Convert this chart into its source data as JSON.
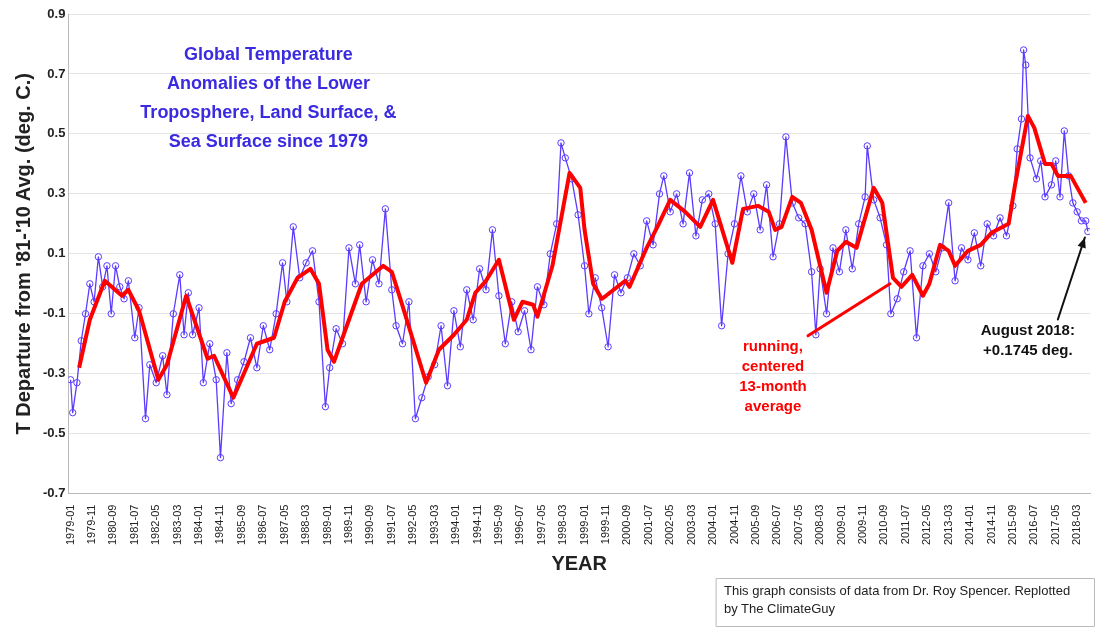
{
  "chart_data": {
    "type": "line",
    "title": "Global Temperature Anomalies of the Lower Troposphere, Land Surface, & Sea Surface since 1979",
    "xlabel": "YEAR",
    "ylabel": "T Departure from '81-'10 Avg. (deg. C.)",
    "ylim": [
      -0.7,
      0.9
    ],
    "yticks": [
      -0.7,
      -0.5,
      -0.3,
      -0.1,
      0.1,
      0.3,
      0.5,
      0.7,
      0.9
    ],
    "xlim": [
      "1978-12",
      "2018-09"
    ],
    "xticks": [
      "1979-01",
      "1979-11",
      "1980-09",
      "1981-07",
      "1982-05",
      "1983-03",
      "1984-01",
      "1984-11",
      "1985-09",
      "1986-07",
      "1987-05",
      "1988-03",
      "1989-01",
      "1989-11",
      "1990-09",
      "1991-07",
      "1992-05",
      "1993-03",
      "1994-01",
      "1994-11",
      "1995-09",
      "1996-07",
      "1997-05",
      "1998-03",
      "1999-01",
      "1999-11",
      "2000-09",
      "2001-07",
      "2002-05",
      "2003-03",
      "2004-01",
      "2004-11",
      "2005-09",
      "2006-07",
      "2007-05",
      "2008-03",
      "2009-01",
      "2009-11",
      "2010-09",
      "2011-07",
      "2012-05",
      "2013-03",
      "2014-01",
      "2014-11",
      "2015-09",
      "2016-07",
      "2017-05",
      "2018-03"
    ],
    "grid": "y",
    "series": [
      {
        "color": "#5b3cff",
        "marker": "circle",
        "x": [
          "1979-01",
          "1979-02",
          "1979-04",
          "1979-06",
          "1979-08",
          "1979-10",
          "1979-12",
          "1980-02",
          "1980-04",
          "1980-06",
          "1980-08",
          "1980-10",
          "1980-12",
          "1981-02",
          "1981-04",
          "1981-07",
          "1981-09",
          "1981-12",
          "1982-02",
          "1982-05",
          "1982-08",
          "1982-10",
          "1983-01",
          "1983-04",
          "1983-06",
          "1983-08",
          "1983-10",
          "1984-01",
          "1984-03",
          "1984-06",
          "1984-09",
          "1984-11",
          "1985-02",
          "1985-04",
          "1985-07",
          "1985-10",
          "1986-01",
          "1986-04",
          "1986-07",
          "1986-10",
          "1987-01",
          "1987-04",
          "1987-06",
          "1987-09",
          "1987-12",
          "1988-03",
          "1988-06",
          "1988-09",
          "1988-12",
          "1989-02",
          "1989-05",
          "1989-08",
          "1989-11",
          "1990-02",
          "1990-04",
          "1990-07",
          "1990-10",
          "1991-01",
          "1991-04",
          "1991-07",
          "1991-09",
          "1991-12",
          "1992-03",
          "1992-06",
          "1992-09",
          "1992-12",
          "1993-03",
          "1993-06",
          "1993-09",
          "1993-12",
          "1994-03",
          "1994-06",
          "1994-09",
          "1994-12",
          "1995-03",
          "1995-06",
          "1995-09",
          "1995-12",
          "1996-03",
          "1996-06",
          "1996-09",
          "1996-12",
          "1997-03",
          "1997-06",
          "1997-09",
          "1997-12",
          "1998-02",
          "1998-04",
          "1998-07",
          "1998-10",
          "1999-01",
          "1999-03",
          "1999-06",
          "1999-09",
          "1999-12",
          "2000-03",
          "2000-06",
          "2000-09",
          "2000-12",
          "2001-03",
          "2001-06",
          "2001-09",
          "2001-12",
          "2002-02",
          "2002-05",
          "2002-08",
          "2002-11",
          "2003-02",
          "2003-05",
          "2003-08",
          "2003-11",
          "2004-02",
          "2004-05",
          "2004-08",
          "2004-11",
          "2005-02",
          "2005-05",
          "2005-08",
          "2005-11",
          "2006-02",
          "2006-05",
          "2006-08",
          "2006-11",
          "2007-02",
          "2007-05",
          "2007-08",
          "2007-11",
          "2008-01",
          "2008-03",
          "2008-06",
          "2008-09",
          "2008-12",
          "2009-03",
          "2009-06",
          "2009-09",
          "2009-12",
          "2010-01",
          "2010-04",
          "2010-07",
          "2010-10",
          "2010-12",
          "2011-03",
          "2011-06",
          "2011-09",
          "2011-12",
          "2012-03",
          "2012-06",
          "2012-09",
          "2012-12",
          "2013-03",
          "2013-06",
          "2013-09",
          "2013-12",
          "2014-03",
          "2014-06",
          "2014-09",
          "2014-12",
          "2015-03",
          "2015-06",
          "2015-09",
          "2015-11",
          "2016-01",
          "2016-02",
          "2016-03",
          "2016-05",
          "2016-08",
          "2016-10",
          "2016-12",
          "2017-03",
          "2017-05",
          "2017-07",
          "2017-09",
          "2017-11",
          "2018-01",
          "2018-03",
          "2018-05",
          "2018-07",
          "2018-08"
        ],
        "values": [
          -0.32,
          -0.43,
          -0.33,
          -0.19,
          -0.1,
          0.0,
          -0.06,
          0.09,
          -0.01,
          0.06,
          -0.1,
          0.06,
          -0.01,
          -0.05,
          0.01,
          -0.18,
          -0.08,
          -0.45,
          -0.27,
          -0.33,
          -0.24,
          -0.37,
          -0.1,
          0.03,
          -0.17,
          -0.03,
          -0.17,
          -0.08,
          -0.33,
          -0.2,
          -0.32,
          -0.58,
          -0.23,
          -0.4,
          -0.32,
          -0.26,
          -0.18,
          -0.28,
          -0.14,
          -0.22,
          -0.1,
          0.07,
          -0.06,
          0.19,
          0.02,
          0.07,
          0.11,
          -0.06,
          -0.41,
          -0.28,
          -0.15,
          -0.2,
          0.12,
          0.0,
          0.13,
          -0.06,
          0.08,
          0.0,
          0.25,
          -0.02,
          -0.14,
          -0.2,
          -0.06,
          -0.45,
          -0.38,
          -0.31,
          -0.27,
          -0.14,
          -0.34,
          -0.09,
          -0.21,
          -0.02,
          -0.12,
          0.05,
          -0.02,
          0.18,
          -0.04,
          -0.2,
          -0.06,
          -0.16,
          -0.09,
          -0.22,
          -0.01,
          -0.07,
          0.1,
          0.2,
          0.47,
          0.42,
          0.35,
          0.23,
          0.06,
          -0.1,
          0.02,
          -0.08,
          -0.21,
          0.03,
          -0.03,
          0.02,
          0.1,
          0.06,
          0.21,
          0.13,
          0.3,
          0.36,
          0.24,
          0.3,
          0.2,
          0.37,
          0.16,
          0.28,
          0.3,
          0.2,
          -0.14,
          0.1,
          0.2,
          0.36,
          0.24,
          0.3,
          0.18,
          0.33,
          0.09,
          0.2,
          0.49,
          0.27,
          0.22,
          0.2,
          0.04,
          -0.17,
          0.05,
          -0.1,
          0.12,
          0.04,
          0.18,
          0.05,
          0.2,
          0.29,
          0.46,
          0.28,
          0.22,
          0.13,
          -0.1,
          -0.05,
          0.04,
          0.11,
          -0.18,
          0.06,
          0.1,
          0.04,
          0.12,
          0.27,
          0.01,
          0.12,
          0.08,
          0.17,
          0.06,
          0.2,
          0.16,
          0.22,
          0.16,
          0.26,
          0.45,
          0.55,
          0.78,
          0.73,
          0.42,
          0.35,
          0.41,
          0.29,
          0.33,
          0.41,
          0.29,
          0.51,
          0.36,
          0.27,
          0.24,
          0.21,
          0.21,
          0.1745
        ]
      },
      {
        "color": "#ff0000",
        "marker": "none",
        "x": [
          "1979-05",
          "1979-10",
          "1980-05",
          "1981-01",
          "1981-04",
          "1981-09",
          "1982-06",
          "1982-10",
          "1983-07",
          "1984-05",
          "1984-08",
          "1985-05",
          "1986-04",
          "1986-12",
          "1987-05",
          "1987-11",
          "1988-05",
          "1988-09",
          "1989-01",
          "1989-04",
          "1990-05",
          "1991-03",
          "1991-07",
          "1991-11",
          "1992-11",
          "1993-05",
          "1993-12",
          "1994-06",
          "1994-10",
          "1995-03",
          "1995-09",
          "1996-04",
          "1996-08",
          "1997-01",
          "1997-03",
          "1997-10",
          "1998-06",
          "1998-11",
          "1999-01",
          "1999-05",
          "1999-09",
          "1999-11",
          "2000-08",
          "2000-10",
          "2001-06",
          "2001-11",
          "2002-05",
          "2002-12",
          "2003-07",
          "2004-01",
          "2004-10",
          "2005-03",
          "2005-10",
          "2006-03",
          "2006-06",
          "2006-09",
          "2007-02",
          "2007-06",
          "2007-11",
          "2008-06",
          "2008-11",
          "2009-03",
          "2009-08",
          "2010-04",
          "2010-08",
          "2011-01",
          "2011-05",
          "2011-10",
          "2012-03",
          "2012-06",
          "2012-11",
          "2013-03",
          "2013-06",
          "2013-12",
          "2014-06",
          "2014-11",
          "2015-07",
          "2015-10",
          "2016-04",
          "2016-07",
          "2016-12",
          "2017-03",
          "2017-06",
          "2017-12",
          "2018-07"
        ],
        "values": [
          -0.28,
          -0.12,
          0.01,
          -0.04,
          -0.02,
          -0.09,
          -0.32,
          -0.27,
          -0.04,
          -0.25,
          -0.24,
          -0.38,
          -0.2,
          -0.18,
          -0.06,
          0.02,
          0.05,
          0.0,
          -0.22,
          -0.26,
          0.0,
          0.06,
          0.04,
          -0.05,
          -0.33,
          -0.22,
          -0.17,
          -0.12,
          -0.03,
          0.01,
          0.08,
          -0.12,
          -0.06,
          -0.07,
          -0.11,
          0.06,
          0.37,
          0.32,
          0.18,
          0.0,
          -0.05,
          -0.04,
          0.01,
          -0.01,
          0.12,
          0.19,
          0.28,
          0.24,
          0.19,
          0.28,
          0.07,
          0.25,
          0.26,
          0.24,
          0.18,
          0.19,
          0.29,
          0.27,
          0.18,
          -0.03,
          0.11,
          0.14,
          0.12,
          0.32,
          0.27,
          0.02,
          -0.01,
          0.03,
          -0.04,
          0.0,
          0.13,
          0.11,
          0.06,
          0.11,
          0.13,
          0.17,
          0.2,
          0.33,
          0.56,
          0.52,
          0.4,
          0.4,
          0.36,
          0.36,
          0.27
        ]
      }
    ],
    "annotations": [
      {
        "text": "running, centered 13-month average",
        "x": "2011-01",
        "y": 0.02
      },
      {
        "text": "August 2018: +0.1745 deg.",
        "x": "2018-08",
        "y": 0.1745
      },
      "This graph consists of data from Dr. Roy Spencer. Replotted by The ClimateGuy"
    ]
  }
}
